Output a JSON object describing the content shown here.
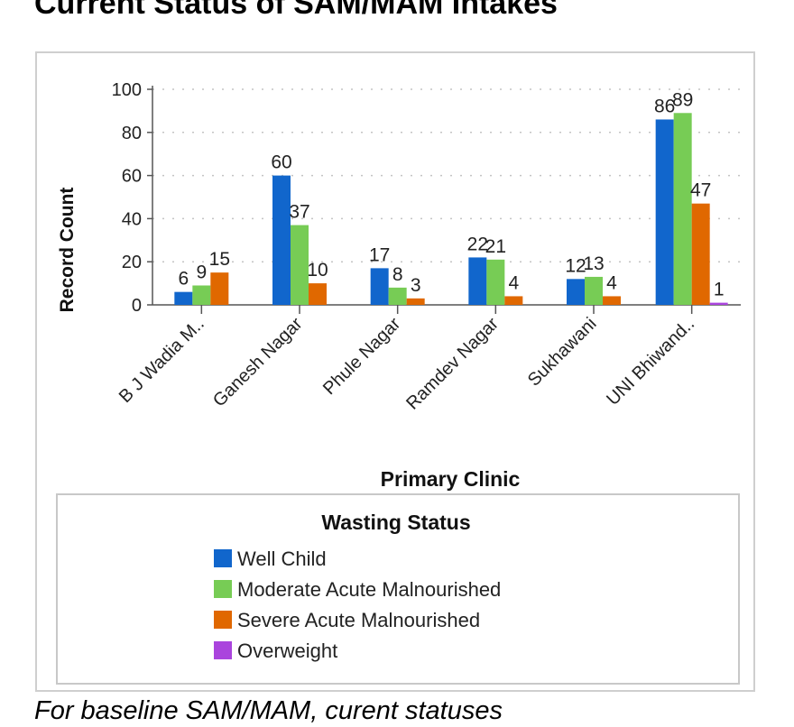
{
  "page": {
    "title": "Current Status of SAM/MAM Intakes",
    "caption": "For baseline SAM/MAM, curent statuses"
  },
  "chart_data": {
    "type": "bar",
    "title": "",
    "xlabel": "Primary Clinic",
    "ylabel": "Record Count",
    "ylim": [
      0,
      100
    ],
    "yticks": [
      0,
      20,
      40,
      60,
      80,
      100
    ],
    "grid": true,
    "categories": [
      "B J Wadia M..",
      "Ganesh Nagar",
      "Phule Nagar",
      "Ramdev Nagar",
      "Sukhawani",
      "UNI Bhiwand.."
    ],
    "legend": {
      "title": "Wasting Status",
      "position": "bottom"
    },
    "series": [
      {
        "name": "Well Child",
        "color": "#1166cc",
        "values": [
          6,
          60,
          17,
          22,
          12,
          86
        ]
      },
      {
        "name": "Moderate Acute Malnourished",
        "color": "#77cc55",
        "values": [
          9,
          37,
          8,
          21,
          13,
          89
        ]
      },
      {
        "name": "Severe Acute Malnourished",
        "color": "#e06800",
        "values": [
          15,
          10,
          3,
          4,
          4,
          47
        ]
      },
      {
        "name": "Overweight",
        "color": "#aa44dd",
        "values": [
          null,
          null,
          null,
          null,
          null,
          1
        ]
      }
    ]
  }
}
